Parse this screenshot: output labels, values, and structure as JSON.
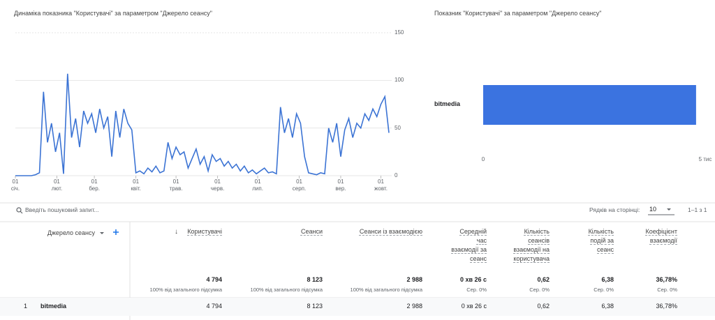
{
  "line_chart": {
    "type": "line",
    "title": "Динаміка показника \"Користувачі\" за параметром \"Джерело сеансу\"",
    "color": "#3b73d4",
    "values": [
      0,
      0,
      0,
      0,
      0,
      1,
      3,
      88,
      35,
      55,
      25,
      45,
      2,
      107,
      40,
      60,
      30,
      68,
      55,
      65,
      45,
      70,
      50,
      62,
      20,
      68,
      40,
      70,
      55,
      48,
      3,
      5,
      2,
      8,
      4,
      10,
      3,
      5,
      35,
      18,
      30,
      22,
      25,
      8,
      18,
      28,
      12,
      20,
      5,
      22,
      15,
      18,
      10,
      15,
      8,
      12,
      5,
      10,
      3,
      6,
      2,
      5,
      8,
      3,
      4,
      2,
      72,
      45,
      60,
      40,
      65,
      55,
      20,
      3,
      2,
      1,
      3,
      2,
      50,
      35,
      55,
      20,
      48,
      60,
      40,
      55,
      50,
      65,
      58,
      70,
      62,
      75,
      83,
      45
    ],
    "xlim": [
      0,
      279
    ],
    "xticks": [
      {
        "value": 0,
        "label": "01\nсіч."
      },
      {
        "value": 31,
        "label": "01\nлют."
      },
      {
        "value": 59,
        "label": "01\nбер."
      },
      {
        "value": 90,
        "label": "01\nквіт."
      },
      {
        "value": 120,
        "label": "01\nтрав."
      },
      {
        "value": 151,
        "label": "01\nчерв."
      },
      {
        "value": 181,
        "label": "01\nлип."
      },
      {
        "value": 212,
        "label": "01\nсерп."
      },
      {
        "value": 243,
        "label": "01\nвер."
      },
      {
        "value": 273,
        "label": "01\nжовт."
      }
    ],
    "ylim": [
      0,
      150
    ],
    "yticks": [
      0,
      50,
      100,
      150
    ],
    "grid": true
  },
  "bar_chart": {
    "type": "bar",
    "title": "Показник \"Користувачі\" за параметром \"Джерело сеансу\"",
    "color": "#3b73e0",
    "categories": [
      "bitmedia"
    ],
    "values": [
      4794
    ],
    "xlim": [
      0,
      5000
    ],
    "xticks": [
      0,
      {
        "value": 5000,
        "label": "5 тис"
      }
    ]
  },
  "search": {
    "placeholder": "Введіть пошуковий запит..."
  },
  "pagination": {
    "rows_label": "Рядків на сторінці:",
    "rows_value": 10,
    "range": "1–1 з 1"
  },
  "table": {
    "dimension_header": "Джерело сеансу",
    "columns": [
      {
        "header": "Користувачі",
        "total": "4 794",
        "total_note": "100% від загального підсумка"
      },
      {
        "header": "Сеанси",
        "total": "8 123",
        "total_note": "100% від загального підсумка"
      },
      {
        "header": "Сеанси із взаємодією",
        "total": "2 988",
        "total_note": "100% від загального підсумка"
      },
      {
        "header": "Середній час взаємодії за сеанс",
        "total": "0 хв 26 с",
        "total_note": "Сер. 0%"
      },
      {
        "header": "Кількість сеансів взаємодії на користувача",
        "total": "0,62",
        "total_note": "Сер. 0%"
      },
      {
        "header": "Кількість подій за сеанс",
        "total": "6,38",
        "total_note": "Сер. 0%"
      },
      {
        "header": "Коефіцієнт взаємодії",
        "total": "36,78%",
        "total_note": "Сер. 0%"
      }
    ],
    "rows": [
      {
        "index": 1,
        "name": "bitmedia",
        "cells": [
          "4 794",
          "8 123",
          "2 988",
          "0 хв 26 с",
          "0,62",
          "6,38",
          "36,78%"
        ]
      }
    ]
  }
}
